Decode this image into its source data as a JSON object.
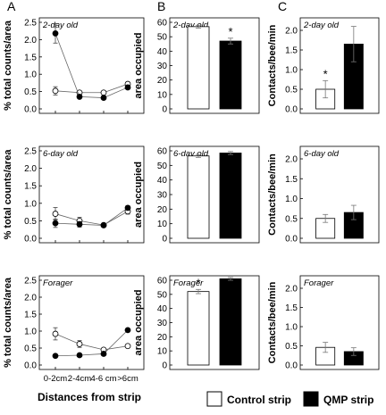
{
  "column_letters": [
    "A",
    "B",
    "C"
  ],
  "x_axis_title": "Distances from strip",
  "legend": {
    "control": "Control strip",
    "qmp": "QMP strip",
    "control_color": "#ffffff",
    "qmp_color": "#000000"
  },
  "chart_data": [
    {
      "id": "A-2day",
      "type": "line",
      "title": "2-day old",
      "ylabel": "% total counts/area",
      "categories": [
        "0-2cm",
        "2-4cm",
        "4-6 cm",
        ">6cm"
      ],
      "ylim": [
        0,
        2.5
      ],
      "yticks": [
        "0.0",
        "0.5",
        "1.0",
        "1.5",
        "2.0",
        "2.5"
      ],
      "show_x_tick_labels": false,
      "series": [
        {
          "name": "Control strip",
          "values": [
            0.52,
            0.47,
            0.47,
            0.72
          ],
          "errors": [
            0.12,
            0.05,
            0.05,
            0.05
          ]
        },
        {
          "name": "QMP strip",
          "values": [
            2.18,
            0.35,
            0.32,
            0.62
          ],
          "errors": [
            0.28,
            0.04,
            0.04,
            0.04
          ]
        }
      ],
      "annotations": []
    },
    {
      "id": "B-2day",
      "type": "bar",
      "title": "2-day old",
      "ylabel": "area occupied",
      "categories": [
        "Control strip",
        "QMP strip"
      ],
      "ylim": [
        0,
        60
      ],
      "yticks": [
        "0",
        "10",
        "20",
        "30",
        "40",
        "50",
        "60"
      ],
      "values": [
        57,
        47
      ],
      "errors": [
        1,
        2
      ],
      "annotations": [
        "*"
      ]
    },
    {
      "id": "C-2day",
      "type": "bar",
      "title": "2-day old",
      "ylabel": "Contacts/bee/min",
      "categories": [
        "Control strip",
        "QMP strip"
      ],
      "ylim": [
        0,
        2.0
      ],
      "yticks": [
        "0.0",
        "0.5",
        "1.0",
        "1.5",
        "2.0"
      ],
      "values": [
        0.5,
        1.65
      ],
      "errors": [
        0.22,
        0.45
      ],
      "annotations": [
        "*"
      ]
    },
    {
      "id": "A-6day",
      "type": "line",
      "title": "6-day old",
      "ylabel": "% total counts/area",
      "categories": [
        "0-2cm",
        "2-4cm",
        "4-6 cm",
        ">6cm"
      ],
      "ylim": [
        0,
        2.5
      ],
      "yticks": [
        "0.0",
        "0.5",
        "1.0",
        "1.5",
        "2.0",
        "2.5"
      ],
      "show_x_tick_labels": false,
      "series": [
        {
          "name": "Control strip",
          "values": [
            0.7,
            0.5,
            0.38,
            0.77
          ],
          "errors": [
            0.18,
            0.1,
            0.04,
            0.08
          ]
        },
        {
          "name": "QMP strip",
          "values": [
            0.43,
            0.4,
            0.37,
            0.87
          ],
          "errors": [
            0.12,
            0.08,
            0.04,
            0.06
          ]
        }
      ],
      "annotations": []
    },
    {
      "id": "B-6day",
      "type": "bar",
      "title": "6-day old",
      "ylabel": "area occupied",
      "categories": [
        "Control strip",
        "QMP strip"
      ],
      "ylim": [
        0,
        60
      ],
      "yticks": [
        "0",
        "10",
        "20",
        "30",
        "40",
        "50",
        "60"
      ],
      "values": [
        56.5,
        58.5
      ],
      "errors": [
        1,
        1
      ],
      "annotations": []
    },
    {
      "id": "C-6day",
      "type": "bar",
      "title": "6-day old",
      "ylabel": "Contacts/bee/min",
      "categories": [
        "Control strip",
        "QMP strip"
      ],
      "ylim": [
        0,
        2.0
      ],
      "yticks": [
        "0.0",
        "0.5",
        "1.0",
        "1.5",
        "2.0"
      ],
      "values": [
        0.5,
        0.65
      ],
      "errors": [
        0.1,
        0.18
      ],
      "annotations": []
    },
    {
      "id": "A-forager",
      "type": "line",
      "title": "Forager",
      "ylabel": "% total counts/area",
      "categories": [
        "0-2cm",
        "2-4cm",
        "4-6 cm",
        ">6cm"
      ],
      "ylim": [
        0,
        2.5
      ],
      "yticks": [
        "0.0",
        "0.5",
        "1.0",
        "1.5",
        "2.0",
        "2.5"
      ],
      "show_x_tick_labels": true,
      "series": [
        {
          "name": "Control strip",
          "values": [
            0.92,
            0.62,
            0.45,
            0.56
          ],
          "errors": [
            0.18,
            0.1,
            0.05,
            0.05
          ]
        },
        {
          "name": "QMP strip",
          "values": [
            0.27,
            0.29,
            0.33,
            1.03
          ],
          "errors": [
            0.04,
            0.03,
            0.04,
            0.05
          ]
        }
      ],
      "annotations": []
    },
    {
      "id": "B-forager",
      "type": "bar",
      "title": "Forager",
      "ylabel": "area occupied",
      "categories": [
        "Control strip",
        "QMP strip"
      ],
      "ylim": [
        0,
        60
      ],
      "yticks": [
        "0",
        "10",
        "20",
        "30",
        "40",
        "50",
        "60"
      ],
      "values": [
        52,
        61
      ],
      "errors": [
        1.5,
        1
      ],
      "annotations": [
        "*"
      ]
    },
    {
      "id": "C-forager",
      "type": "bar",
      "title": "Forager",
      "ylabel": "Contacts/bee/min",
      "categories": [
        "Control strip",
        "QMP strip"
      ],
      "ylim": [
        0,
        2.0
      ],
      "yticks": [
        "0.0",
        "0.5",
        "1.0",
        "1.5",
        "2.0"
      ],
      "values": [
        0.46,
        0.35
      ],
      "errors": [
        0.13,
        0.1
      ],
      "annotations": []
    }
  ]
}
